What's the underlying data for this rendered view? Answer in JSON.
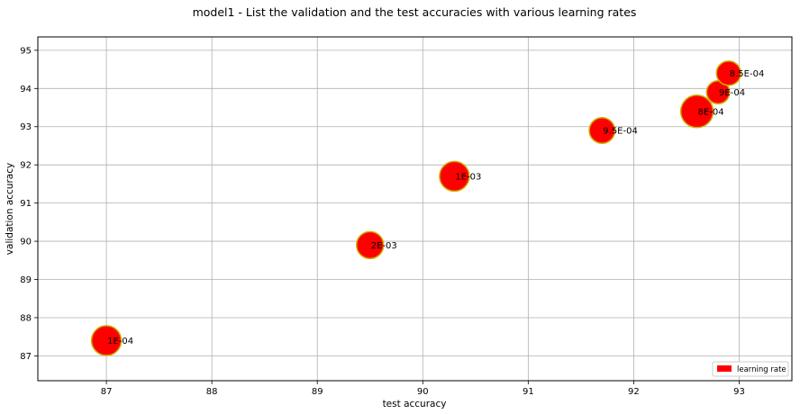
{
  "chart_data": {
    "type": "scatter",
    "title": "model1 - List the validation and the test accuracies with various learning rates",
    "xlabel": "test accuracy",
    "ylabel": "validation accuracy",
    "xlim": [
      86.35,
      93.5
    ],
    "ylim": [
      86.35,
      95.35
    ],
    "xticks": [
      87,
      88,
      89,
      90,
      91,
      92,
      93
    ],
    "yticks": [
      87,
      88,
      89,
      90,
      91,
      92,
      93,
      94,
      95
    ],
    "grid": true,
    "legend": {
      "position": "lower-right",
      "entries": [
        "learning rate"
      ]
    },
    "marker_color": "#ff0000",
    "marker_edge_color": "#c8b400",
    "series": [
      {
        "name": "learning rate",
        "points": [
          {
            "x": 87.0,
            "y": 87.4,
            "label": "1E-04",
            "size": 1.1
          },
          {
            "x": 89.5,
            "y": 89.9,
            "label": "2E-03",
            "size": 1.0
          },
          {
            "x": 90.3,
            "y": 91.7,
            "label": "1E-03",
            "size": 1.1
          },
          {
            "x": 91.7,
            "y": 92.9,
            "label": "9.5E-04",
            "size": 0.95
          },
          {
            "x": 92.6,
            "y": 93.4,
            "label": "8E-04",
            "size": 1.2
          },
          {
            "x": 92.8,
            "y": 93.9,
            "label": "9E-04",
            "size": 0.85
          },
          {
            "x": 92.9,
            "y": 94.4,
            "label": "8.5E-04",
            "size": 0.9
          }
        ]
      }
    ]
  }
}
